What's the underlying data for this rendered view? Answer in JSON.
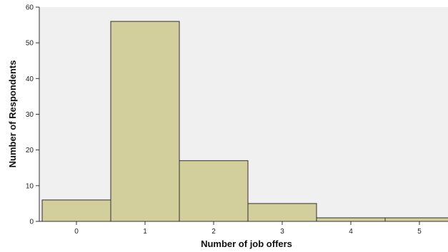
{
  "chart_data": {
    "type": "bar",
    "categories": [
      "0",
      "1",
      "2",
      "3",
      "4",
      "5"
    ],
    "values": [
      6,
      56,
      17,
      5,
      1,
      1
    ],
    "xlabel": "Number of job offers",
    "ylabel": "Number of Respondents",
    "ylim": [
      0,
      60
    ],
    "yticks": [
      "0",
      "10",
      "20",
      "30",
      "40",
      "50",
      "60"
    ],
    "grid": false,
    "colors": {
      "bar_fill": "#d3cf9c",
      "bar_stroke": "#2f2f2f",
      "plot_background": "#f0f0f0"
    }
  }
}
